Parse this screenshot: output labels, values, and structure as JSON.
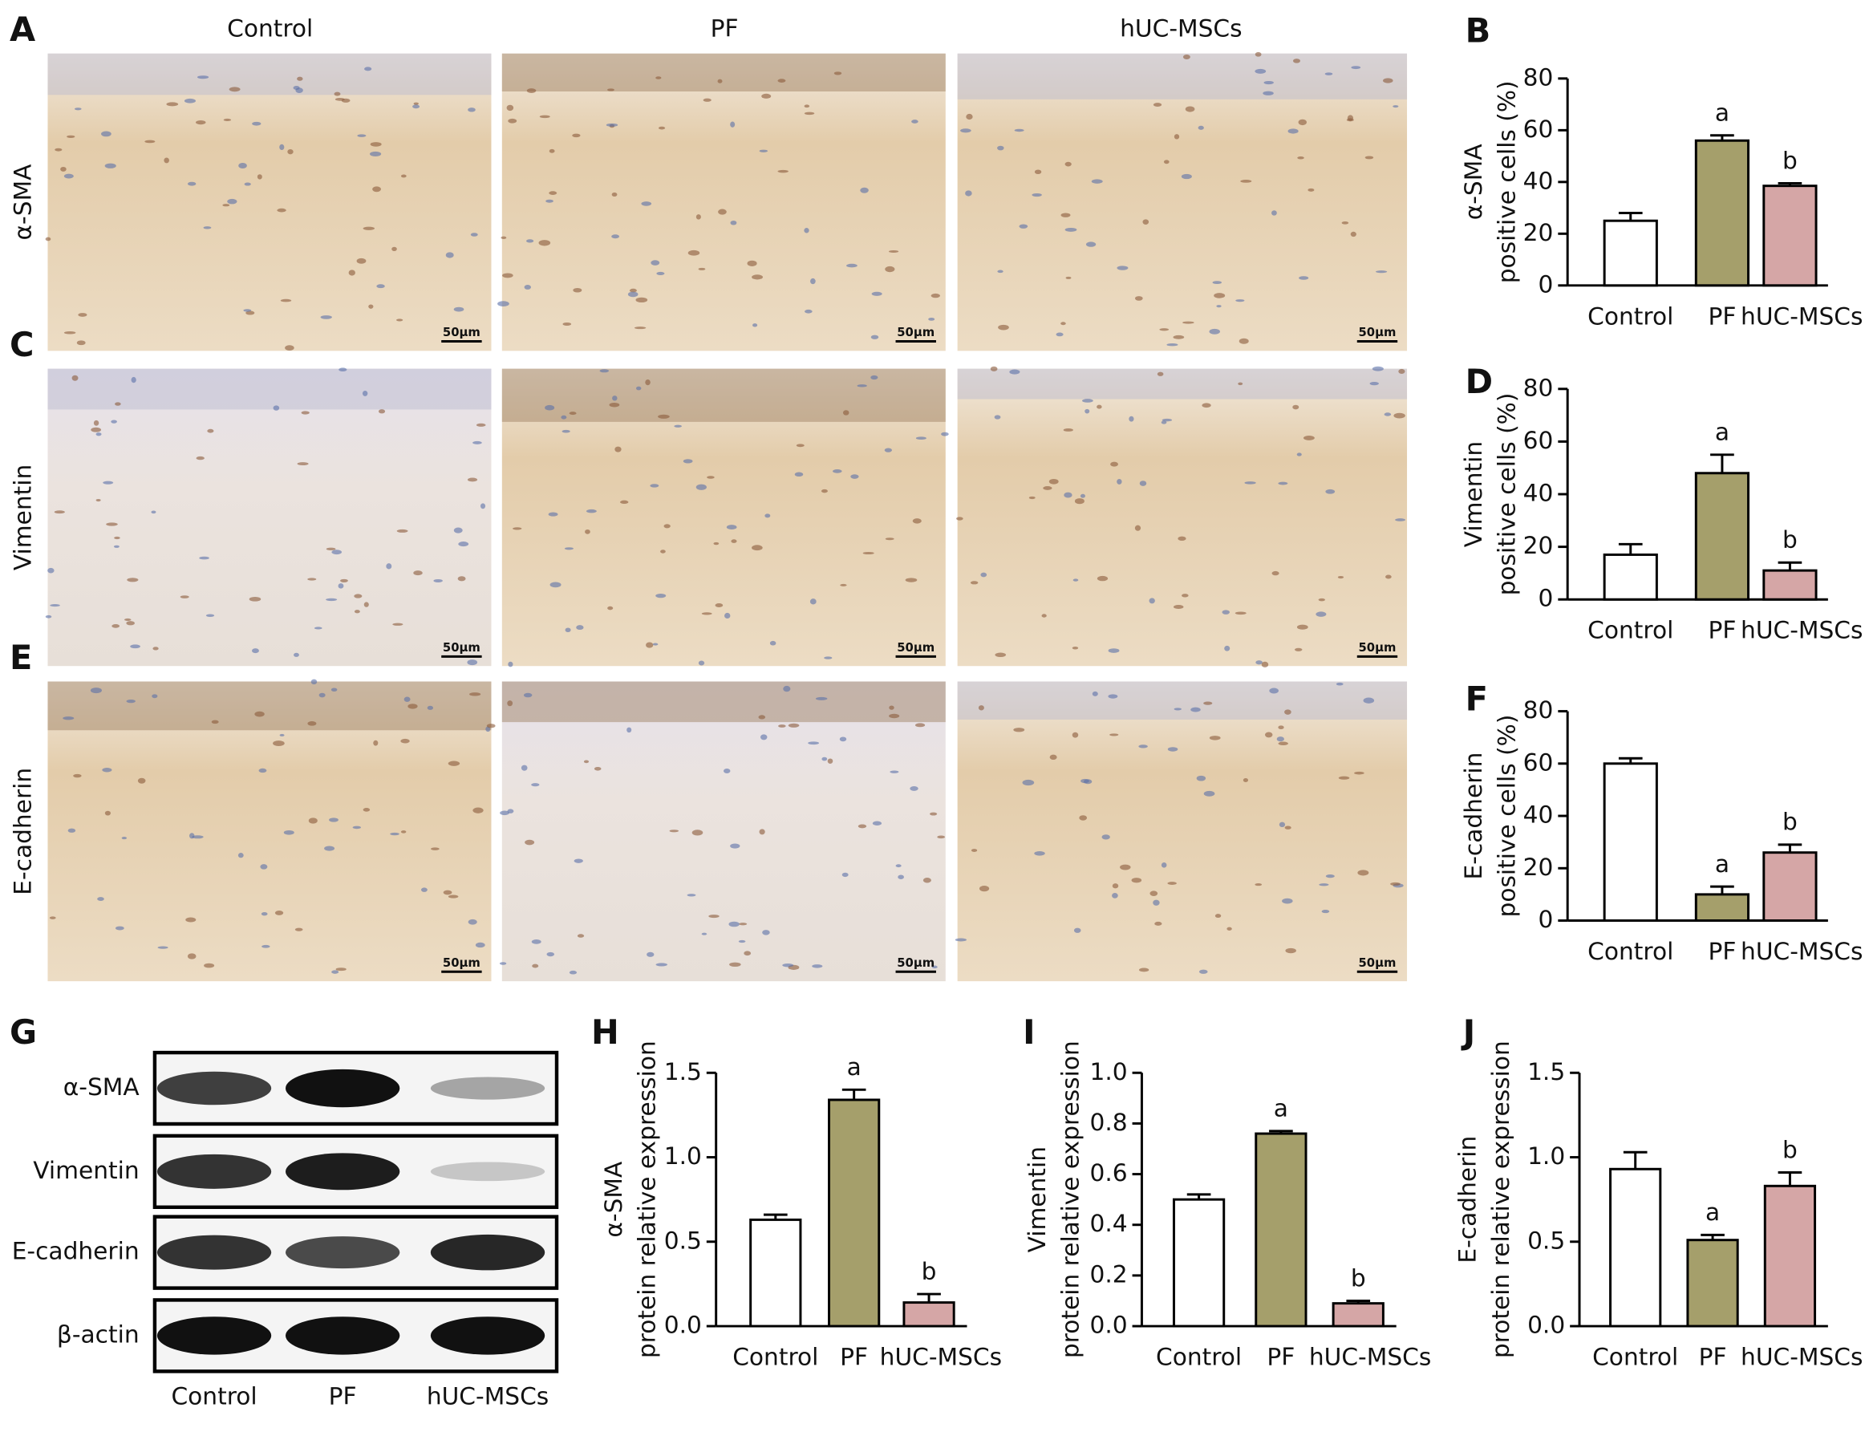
{
  "micrographs": {
    "columns": [
      "Control",
      "PF",
      "hUC-MSCs"
    ],
    "rows": [
      {
        "panel": "A",
        "label": "α-SMA"
      },
      {
        "panel": "C",
        "label": "Vimentin"
      },
      {
        "panel": "E",
        "label": "E-cadherin"
      }
    ],
    "scale_bar": "50μm"
  },
  "western_blot": {
    "panel": "G",
    "bands": [
      "α-SMA",
      "Vimentin",
      "E-cadherin",
      "β-actin"
    ],
    "lanes": [
      "Control",
      "PF",
      "hUC-MSCs"
    ]
  },
  "chart_data": [
    {
      "type": "bar",
      "panel": "B",
      "ylabel": [
        "α-SMA",
        "positive cells (%)"
      ],
      "categories": [
        "Control",
        "PF",
        "hUC-MSCs"
      ],
      "values": [
        25,
        56,
        38.5
      ],
      "errors": [
        3,
        2,
        1
      ],
      "colors": [
        "#ffffff",
        "#a59f6b",
        "#d5a6a6"
      ],
      "annotations": [
        null,
        "a",
        "b"
      ],
      "ylim": [
        0,
        80
      ],
      "yticks": [
        0,
        20,
        40,
        60,
        80
      ]
    },
    {
      "type": "bar",
      "panel": "D",
      "ylabel": [
        "Vimentin",
        "positive cells (%)"
      ],
      "categories": [
        "Control",
        "PF",
        "hUC-MSCs"
      ],
      "values": [
        17,
        48,
        11
      ],
      "errors": [
        4,
        7,
        3
      ],
      "colors": [
        "#ffffff",
        "#a59f6b",
        "#d5a6a6"
      ],
      "annotations": [
        null,
        "a",
        "b"
      ],
      "ylim": [
        0,
        80
      ],
      "yticks": [
        0,
        20,
        40,
        60,
        80
      ]
    },
    {
      "type": "bar",
      "panel": "F",
      "ylabel": [
        "E-cadherin",
        "positive cells (%)"
      ],
      "categories": [
        "Control",
        "PF",
        "hUC-MSCs"
      ],
      "values": [
        60,
        10,
        26
      ],
      "errors": [
        2,
        3,
        3
      ],
      "colors": [
        "#ffffff",
        "#a59f6b",
        "#d5a6a6"
      ],
      "annotations": [
        null,
        "a",
        "b"
      ],
      "ylim": [
        0,
        80
      ],
      "yticks": [
        0,
        20,
        40,
        60,
        80
      ]
    },
    {
      "type": "bar",
      "panel": "H",
      "ylabel": [
        "α-SMA",
        "protein relative expression"
      ],
      "categories": [
        "Control",
        "PF",
        "hUC-MSCs"
      ],
      "values": [
        0.63,
        1.34,
        0.14
      ],
      "errors": [
        0.03,
        0.06,
        0.05
      ],
      "colors": [
        "#ffffff",
        "#a59f6b",
        "#d5a6a6"
      ],
      "annotations": [
        null,
        "a",
        "b"
      ],
      "ylim": [
        0,
        1.5
      ],
      "yticks": [
        {
          "value": 0,
          "label": "0.0"
        },
        0.5,
        {
          "value": 1,
          "label": "1.0"
        },
        1.5
      ]
    },
    {
      "type": "bar",
      "panel": "I",
      "ylabel": [
        "Vimentin",
        "protein relative expression"
      ],
      "categories": [
        "Control",
        "PF",
        "hUC-MSCs"
      ],
      "values": [
        0.5,
        0.76,
        0.09
      ],
      "errors": [
        0.02,
        0.01,
        0.01
      ],
      "colors": [
        "#ffffff",
        "#a59f6b",
        "#d5a6a6"
      ],
      "annotations": [
        null,
        "a",
        "b"
      ],
      "ylim": [
        0,
        1
      ],
      "yticks": [
        {
          "value": 0,
          "label": "0.0"
        },
        0.2,
        0.4,
        0.6,
        0.8,
        {
          "value": 1,
          "label": "1.0"
        }
      ]
    },
    {
      "type": "bar",
      "panel": "J",
      "ylabel": [
        "E-cadherin",
        "protein relative expression"
      ],
      "categories": [
        "Control",
        "PF",
        "hUC-MSCs"
      ],
      "values": [
        0.93,
        0.51,
        0.83
      ],
      "errors": [
        0.1,
        0.03,
        0.08
      ],
      "colors": [
        "#ffffff",
        "#a59f6b",
        "#d5a6a6"
      ],
      "annotations": [
        null,
        "a",
        "b"
      ],
      "ylim": [
        0,
        1.5
      ],
      "yticks": [
        {
          "value": 0,
          "label": "0.0"
        },
        0.5,
        {
          "value": 1,
          "label": "1.0"
        },
        1.5
      ]
    }
  ]
}
